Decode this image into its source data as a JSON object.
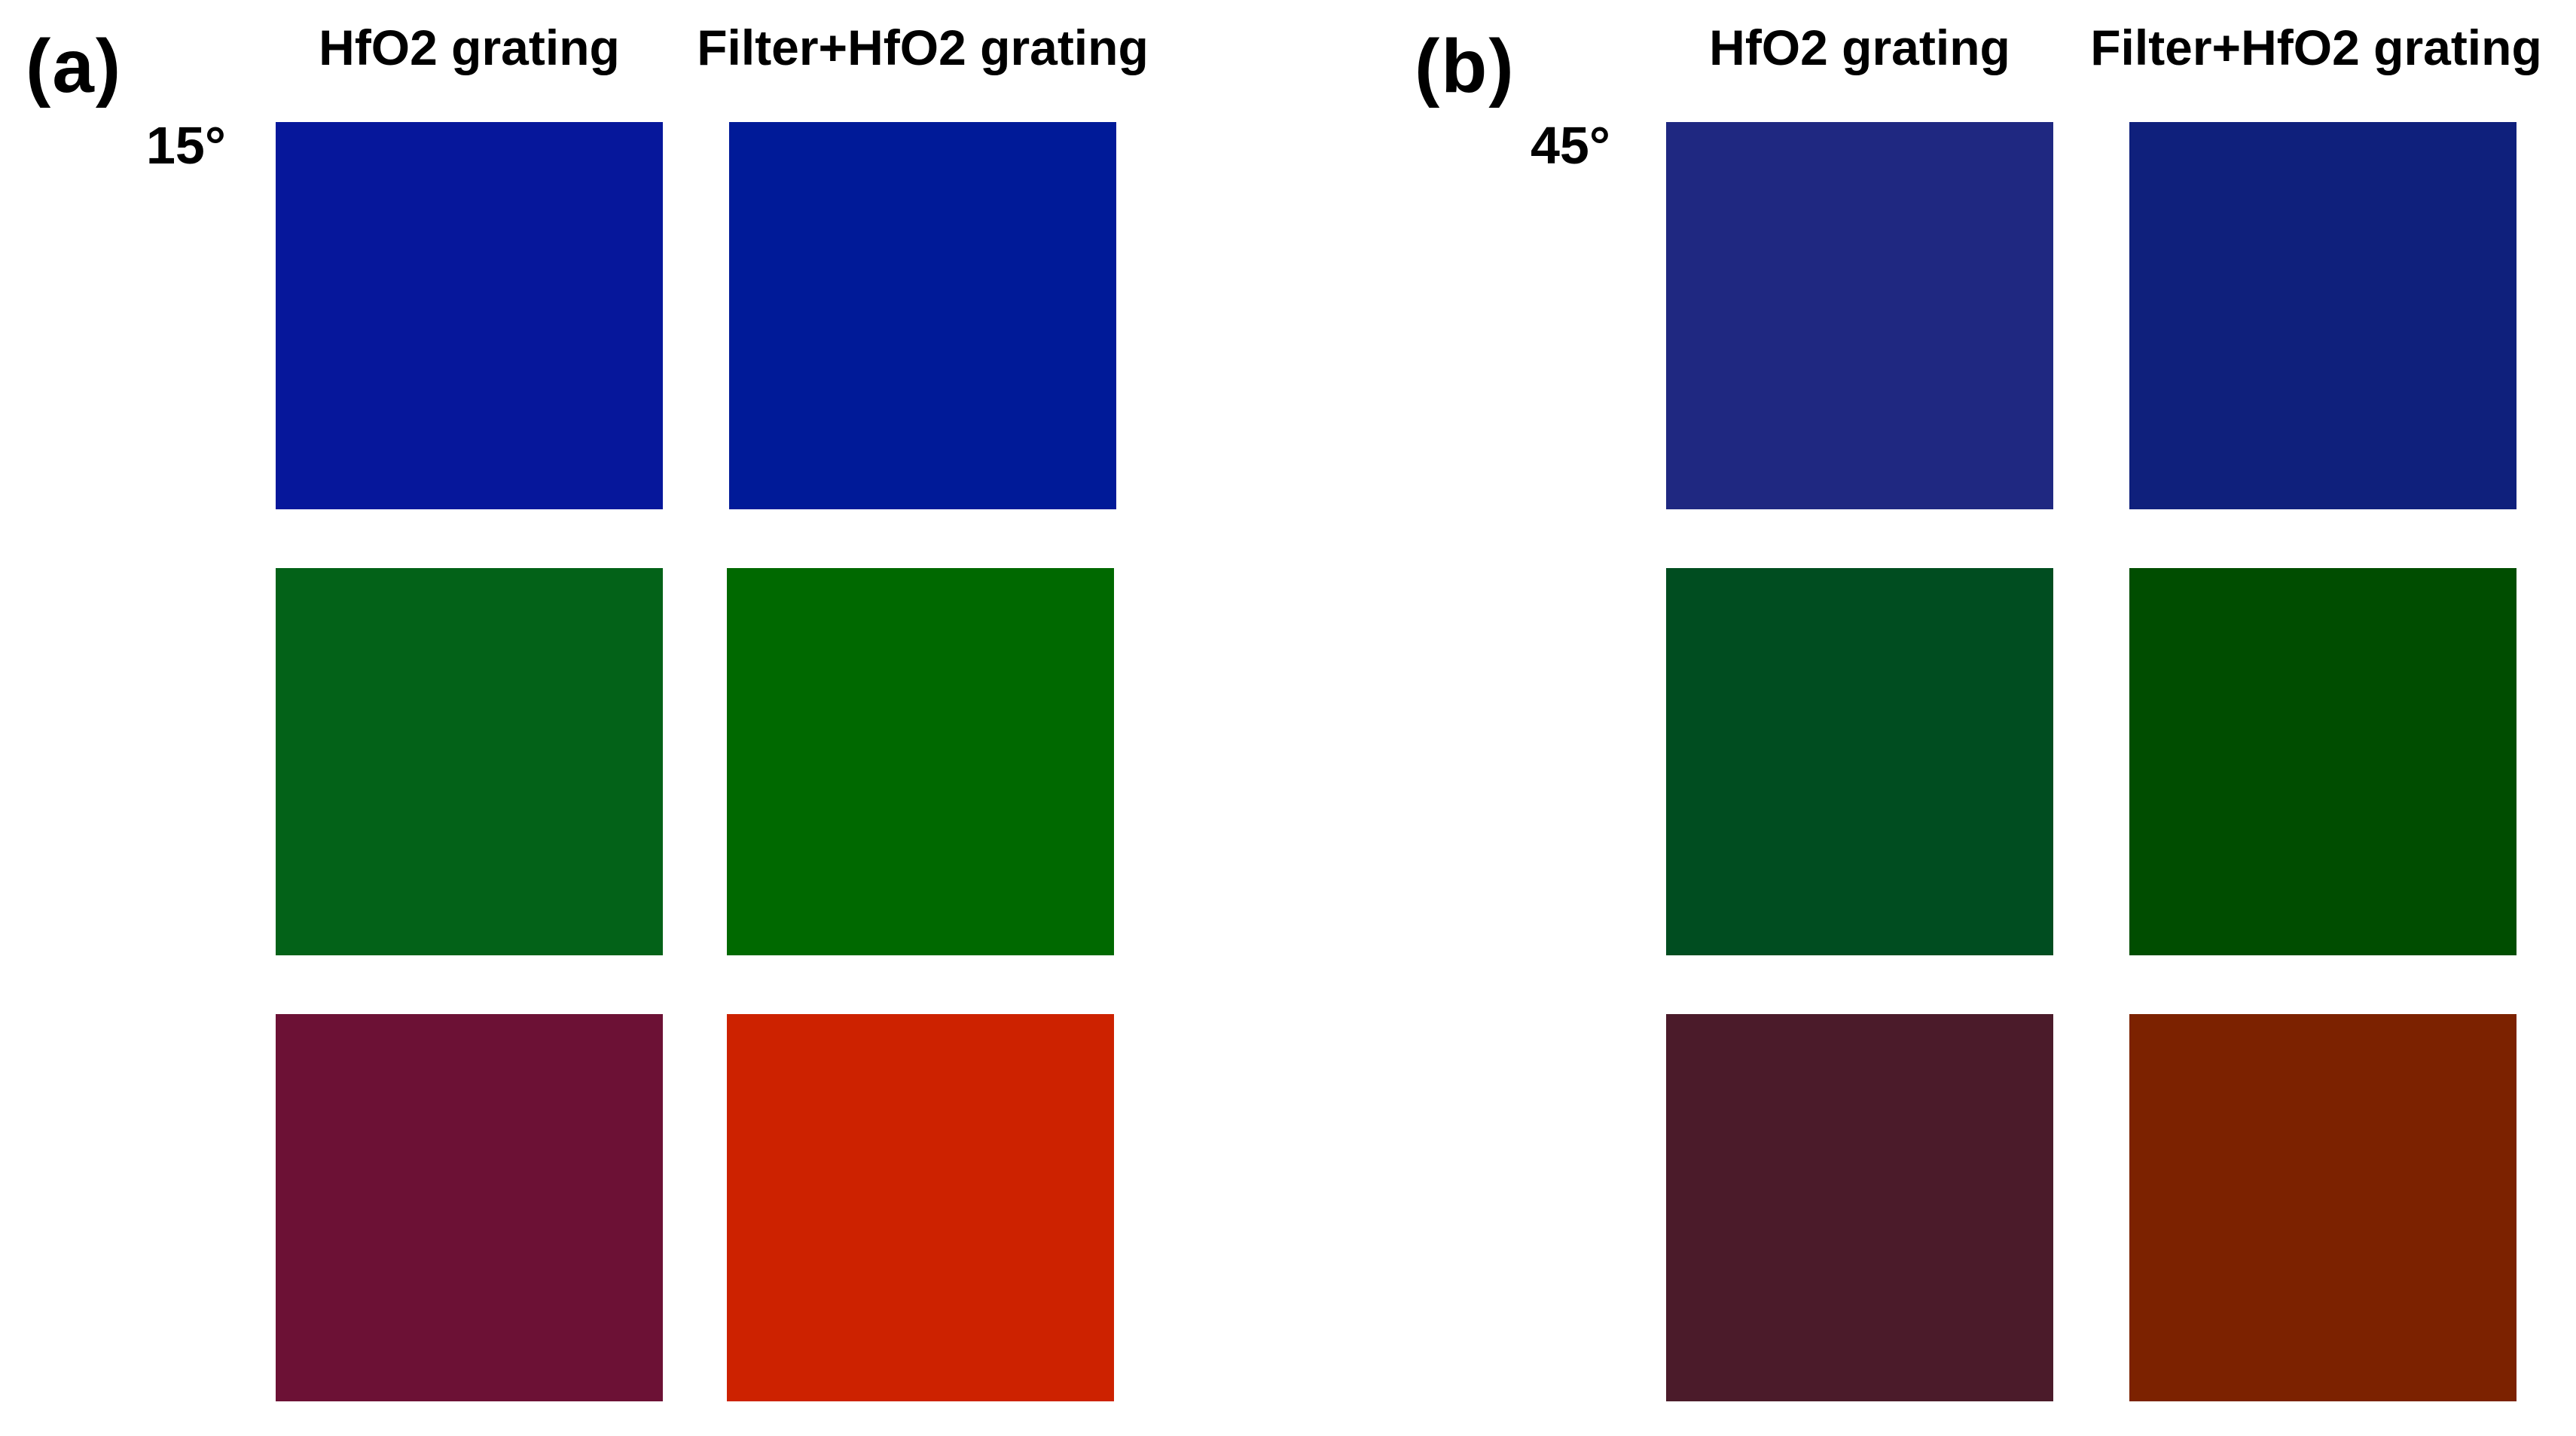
{
  "panels": [
    {
      "id": "a",
      "label": "(a)",
      "angle": "15°",
      "columns": [
        "HfO2 grating",
        "Filter+HfO2 grating"
      ],
      "swatches": [
        [
          "#06179B",
          "#001A98"
        ],
        [
          "#036218",
          "#006900"
        ],
        [
          "#6C1135",
          "#CD2200"
        ]
      ]
    },
    {
      "id": "b",
      "label": "(b)",
      "angle": "45°",
      "columns": [
        "HfO2 grating",
        "Filter+HfO2 grating"
      ],
      "swatches": [
        [
          "#1F2881",
          "#0F207C"
        ],
        [
          "#004D20",
          "#004D00"
        ],
        [
          "#4B1B2A",
          "#7C2200"
        ]
      ]
    }
  ]
}
